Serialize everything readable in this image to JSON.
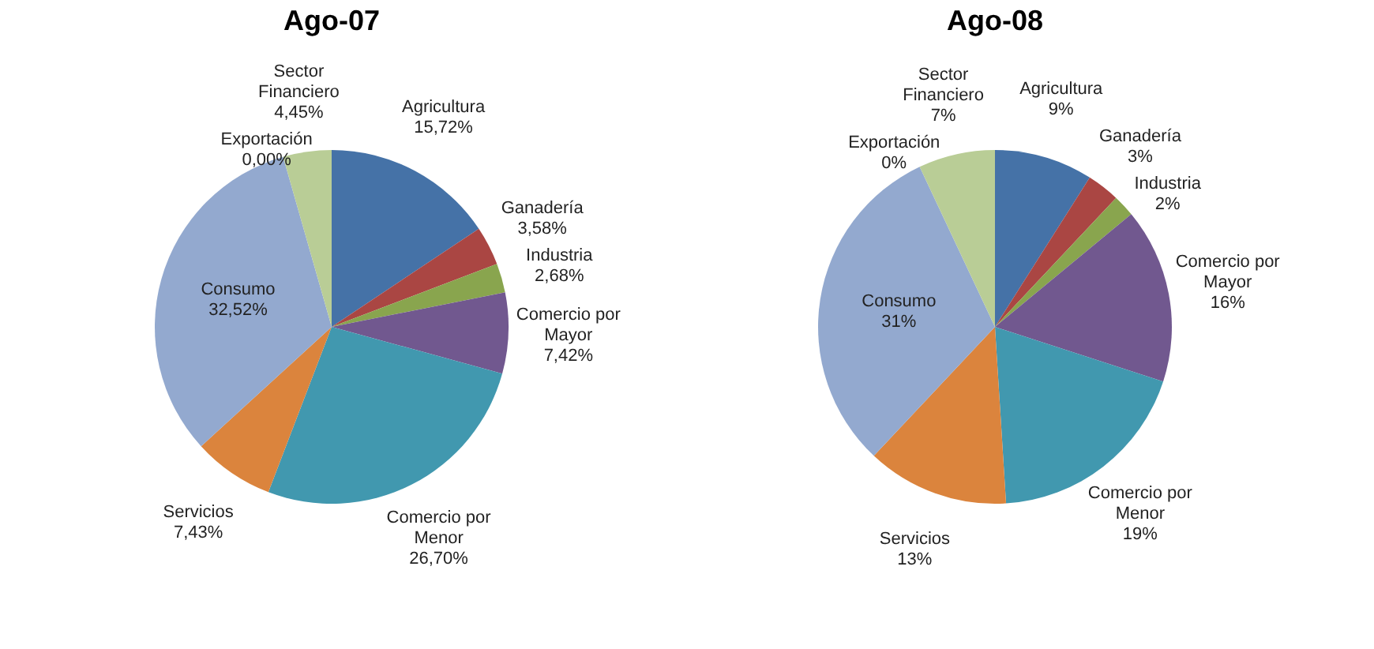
{
  "chart_data": [
    {
      "type": "pie",
      "title": "Ago-07",
      "categories": [
        "Agricultura",
        "Ganadería",
        "Industria",
        "Comercio por Mayor",
        "Comercio por Menor",
        "Servicios",
        "Consumo",
        "Exportación",
        "Sector Financiero"
      ],
      "values": [
        15.72,
        3.58,
        2.68,
        7.42,
        26.7,
        7.43,
        32.52,
        0.0,
        4.45
      ],
      "value_labels": [
        "15,72%",
        "3,58%",
        "2,68%",
        "7,42%",
        "26,70%",
        "7,43%",
        "32,52%",
        "0,00%",
        "4,45%"
      ],
      "colors": [
        "#4572a7",
        "#aa4643",
        "#89a54e",
        "#71588f",
        "#4198af",
        "#db843d",
        "#93a9cf",
        "#d19392",
        "#b9cd96"
      ]
    },
    {
      "type": "pie",
      "title": "Ago-08",
      "categories": [
        "Agricultura",
        "Ganadería",
        "Industria",
        "Comercio por Mayor",
        "Comercio por Menor",
        "Servicios",
        "Consumo",
        "Exportación",
        "Sector Financiero"
      ],
      "values": [
        9,
        3,
        2,
        16,
        19,
        13,
        31,
        0,
        7
      ],
      "value_labels": [
        "9%",
        "3%",
        "2%",
        "16%",
        "19%",
        "13%",
        "31%",
        "0%",
        "7%"
      ],
      "colors": [
        "#4572a7",
        "#aa4643",
        "#89a54e",
        "#71588f",
        "#4198af",
        "#db843d",
        "#93a9cf",
        "#d19392",
        "#b9cd96"
      ]
    }
  ]
}
